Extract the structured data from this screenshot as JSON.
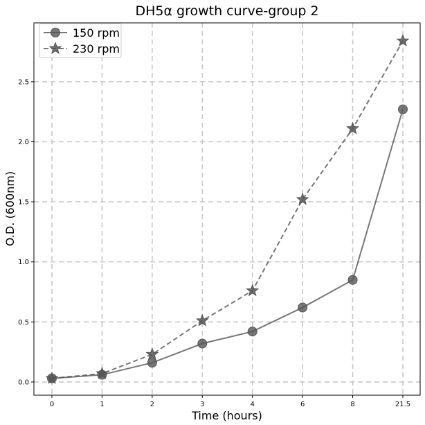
{
  "chart_data": {
    "type": "line",
    "title": "DH5α growth curve-group 2",
    "xlabel": "Time (hours)",
    "ylabel": "O.D. (600nm)",
    "categories": [
      "0",
      "1",
      "2",
      "3",
      "4",
      "6",
      "8",
      "21.5"
    ],
    "ylim": [
      -0.11,
      2.99
    ],
    "yticks": [
      "0.0",
      "0.5",
      "1.0",
      "1.5",
      "2.0",
      "2.5"
    ],
    "grid": true,
    "legend_position": "top-left",
    "series": [
      {
        "name": "150 rpm",
        "values": [
          0.03,
          0.06,
          0.16,
          0.32,
          0.42,
          0.62,
          0.85,
          2.27
        ],
        "color": "#555555",
        "marker": "circle",
        "linestyle": "solid"
      },
      {
        "name": "230 rpm",
        "values": [
          0.03,
          0.07,
          0.23,
          0.51,
          0.76,
          1.52,
          2.11,
          2.84
        ],
        "color": "#555555",
        "marker": "star",
        "linestyle": "dashed"
      }
    ]
  }
}
